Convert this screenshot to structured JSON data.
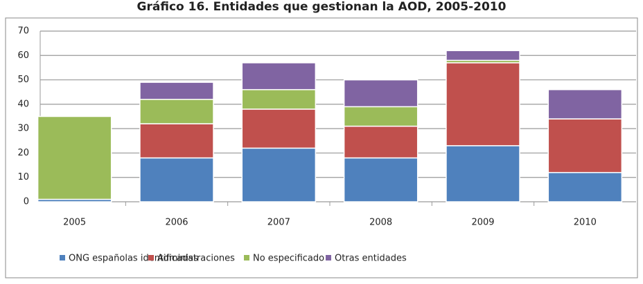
{
  "chart_data": {
    "type": "bar",
    "stacked": true,
    "title": "Gráfico 16. Entidades que gestionan la AOD, 2005-2010",
    "categories": [
      "2005",
      "2006",
      "2007",
      "2008",
      "2009",
      "2010"
    ],
    "series": [
      {
        "name": "ONG españolas identificadas",
        "color": "#4f81bd",
        "values": [
          1,
          18,
          22,
          18,
          23,
          12
        ]
      },
      {
        "name": "Administraciones",
        "color": "#c0504d",
        "values": [
          0,
          14,
          16,
          13,
          34,
          22
        ]
      },
      {
        "name": "No especificado",
        "color": "#9bbb59",
        "values": [
          34,
          10,
          8,
          8,
          1,
          0
        ]
      },
      {
        "name": "Otras entidades",
        "color": "#8064a2",
        "values": [
          0,
          7,
          11,
          11,
          4,
          12
        ]
      }
    ],
    "ylim": [
      0,
      70
    ],
    "yticks": [
      0,
      10,
      20,
      30,
      40,
      50,
      60,
      70
    ],
    "grid": true,
    "legend": "bottom"
  }
}
